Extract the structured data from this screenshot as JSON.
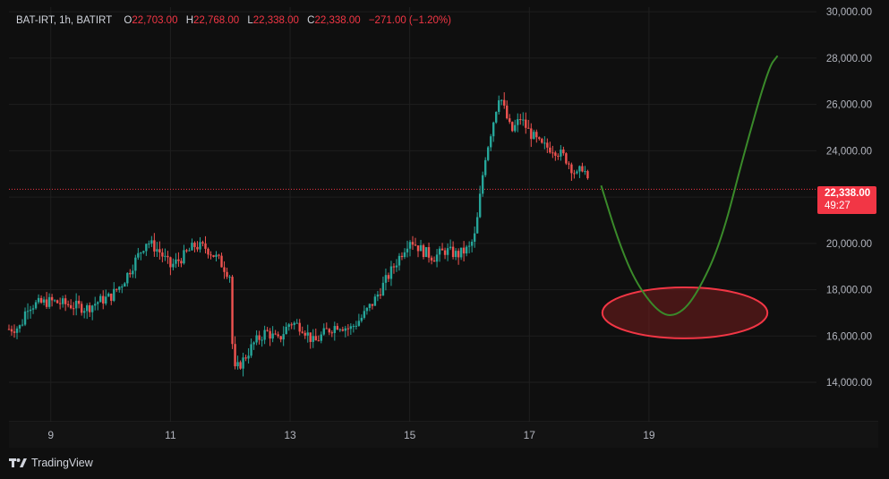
{
  "header": {
    "symbol": "BAT-IRT, 1h, BATIRT",
    "open_label": "O",
    "open": "22,703.00",
    "high_label": "H",
    "high": "22,768.00",
    "low_label": "L",
    "low": "22,338.00",
    "close_label": "C",
    "close": "22,338.00",
    "change": "−271.00 (−1.20%)"
  },
  "price_tag": {
    "price": "22,338.00",
    "countdown": "49:27"
  },
  "brand": {
    "name": "TradingView",
    "logo_icon": "tradingview-logo-icon"
  },
  "colors": {
    "up": "#26a69a",
    "down": "#ef5350",
    "projection": "#3a8a2a",
    "ellipse": "#f23645",
    "background": "#0f0f0f",
    "grid": "#1f1f1f"
  },
  "chart_data": {
    "type": "candlestick",
    "y_ticks": [
      "30,000.00",
      "28,000.00",
      "26,000.00",
      "24,000.00",
      "20,000.00",
      "18,000.00",
      "16,000.00",
      "14,000.00"
    ],
    "x_ticks": [
      "9",
      "11",
      "13",
      "15",
      "17",
      "19"
    ],
    "x_tick_values": [
      9,
      11,
      13,
      15,
      17,
      19
    ],
    "ylim": [
      12300,
      30200
    ],
    "xlim": [
      8.3,
      21.8
    ],
    "last_price": 22338,
    "close_path": [
      [
        8.3,
        16300
      ],
      [
        8.5,
        16400
      ],
      [
        8.6,
        17300
      ],
      [
        8.8,
        17400
      ],
      [
        9.0,
        17500
      ],
      [
        9.2,
        17400
      ],
      [
        9.4,
        17300
      ],
      [
        9.6,
        17200
      ],
      [
        9.8,
        17500
      ],
      [
        10.0,
        17700
      ],
      [
        10.2,
        18300
      ],
      [
        10.4,
        19200
      ],
      [
        10.6,
        20100
      ],
      [
        10.8,
        19700
      ],
      [
        11.0,
        19000
      ],
      [
        11.2,
        19400
      ],
      [
        11.4,
        19900
      ],
      [
        11.6,
        19800
      ],
      [
        11.8,
        19300
      ],
      [
        12.0,
        18600
      ],
      [
        12.05,
        14400
      ],
      [
        12.2,
        14900
      ],
      [
        12.4,
        15700
      ],
      [
        12.6,
        16200
      ],
      [
        12.8,
        15800
      ],
      [
        13.0,
        16600
      ],
      [
        13.2,
        16400
      ],
      [
        13.4,
        15700
      ],
      [
        13.6,
        16200
      ],
      [
        13.8,
        16500
      ],
      [
        14.0,
        16300
      ],
      [
        14.2,
        16800
      ],
      [
        14.4,
        17500
      ],
      [
        14.6,
        18400
      ],
      [
        14.8,
        19300
      ],
      [
        15.0,
        20200
      ],
      [
        15.2,
        19700
      ],
      [
        15.4,
        19400
      ],
      [
        15.6,
        19700
      ],
      [
        15.8,
        19500
      ],
      [
        16.0,
        19800
      ],
      [
        16.1,
        20400
      ],
      [
        16.25,
        23600
      ],
      [
        16.4,
        25300
      ],
      [
        16.5,
        26500
      ],
      [
        16.6,
        25600
      ],
      [
        16.7,
        24800
      ],
      [
        16.85,
        25400
      ],
      [
        17.0,
        24800
      ],
      [
        17.2,
        24200
      ],
      [
        17.4,
        24100
      ],
      [
        17.6,
        23700
      ],
      [
        17.8,
        22900
      ],
      [
        17.9,
        23400
      ],
      [
        18.0,
        22338
      ]
    ],
    "projection": [
      [
        18.2,
        22500
      ],
      [
        18.5,
        20000
      ],
      [
        18.8,
        18200
      ],
      [
        19.2,
        16900
      ],
      [
        19.5,
        16900
      ],
      [
        19.8,
        17800
      ],
      [
        20.2,
        20000
      ],
      [
        20.6,
        24000
      ],
      [
        21.0,
        27600
      ],
      [
        21.15,
        28100
      ]
    ],
    "highlight_ellipse": {
      "center": [
        19.6,
        17000
      ],
      "rx": 1.38,
      "ry": 1100
    }
  }
}
